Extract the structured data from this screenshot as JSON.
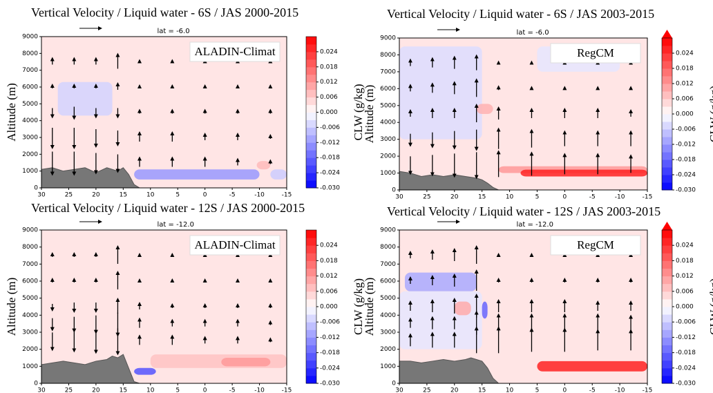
{
  "chart_data": [
    {
      "type": "section",
      "title": "Vertical Velocity / Liquid water - 6S / JAS 2000-2015",
      "annotation": "lat = -6.0",
      "label": "ALADIN-Climat",
      "y_label": "Altitude (m)",
      "colorbar_label": "CLW (g/kg)",
      "xlim": [
        30,
        -15
      ],
      "xticks": [
        30,
        25,
        20,
        15,
        10,
        5,
        0,
        -5,
        -10,
        -15
      ],
      "ylim": [
        0,
        9000
      ],
      "yticks": [
        0,
        1000,
        2000,
        3000,
        4000,
        5000,
        6000,
        7000,
        8000,
        9000
      ],
      "clim": [
        -0.03,
        0.03
      ],
      "cticks": [
        {
          "value": -0.03,
          "label": "-0.030"
        },
        -0.024,
        -0.018,
        -0.012,
        -0.006,
        {
          "value": 0,
          "label": "0.000"
        },
        0.006,
        0.012,
        0.018,
        0.024
      ],
      "extend": "neither",
      "background": 0.003,
      "clw": [
        {
          "x": [
            27,
            17
          ],
          "z": [
            4300,
            6300
          ],
          "value": -0.005
        },
        {
          "x": [
            13,
            -10
          ],
          "z": [
            500,
            1100
          ],
          "value": -0.012
        },
        {
          "x": [
            -9.5,
            -12
          ],
          "z": [
            1100,
            1600
          ],
          "value": 0.008
        },
        {
          "x": [
            -12,
            -15
          ],
          "z": [
            500,
            1100
          ],
          "value": -0.006
        }
      ],
      "terrain": {
        "x": [
          30,
          28,
          26,
          24,
          22,
          20,
          18,
          16,
          15,
          14,
          13,
          12
        ],
        "z": [
          1100,
          1200,
          1000,
          1100,
          1200,
          900,
          1200,
          1000,
          1200,
          800,
          200,
          0
        ]
      },
      "wind": {
        "x": [
          28,
          24,
          20,
          16,
          12,
          6,
          0,
          -6,
          -12
        ],
        "z": [
          1500,
          3000,
          4500,
          6000,
          7500
        ],
        "w": [
          [
            -0.8,
            -0.8,
            -0.7,
            -0.6,
            0.3,
            0.3,
            0.3,
            0.2,
            0.1
          ],
          [
            -0.7,
            -0.7,
            -0.6,
            -0.5,
            0.3,
            0.3,
            0.2,
            0.2,
            0.1
          ],
          [
            -0.3,
            -0.4,
            -0.3,
            -0.3,
            0.1,
            0.1,
            0.1,
            0.1,
            0.1
          ],
          [
            0.1,
            0.1,
            0.1,
            0.2,
            0.05,
            0.05,
            0.05,
            0.05,
            0.05
          ],
          [
            0.2,
            0.2,
            0.2,
            0.5,
            0.05,
            0.05,
            0.05,
            0.05,
            0.05
          ]
        ]
      }
    },
    {
      "type": "section",
      "title": "Vertical Velocity / Liquid water - 6S / JAS 2003-2015",
      "annotation": "lat = -6.0",
      "label": "RegCM",
      "y_label": "Altitude (m)",
      "colorbar_label": "CLW (g/kg)",
      "xlim": [
        30,
        -15
      ],
      "xticks": [
        30,
        25,
        20,
        15,
        10,
        5,
        0,
        -5,
        -10,
        -15
      ],
      "ylim": [
        0,
        9000
      ],
      "yticks": [
        0,
        1000,
        2000,
        3000,
        4000,
        5000,
        6000,
        7000,
        8000,
        9000
      ],
      "clim": [
        -0.03,
        0.03
      ],
      "cticks": [
        {
          "value": -0.03,
          "label": "-0.030"
        },
        -0.024,
        -0.018,
        -0.012,
        -0.006,
        {
          "value": 0,
          "label": "0.000"
        },
        0.006,
        0.012,
        0.018,
        0.024
      ],
      "extend": "max",
      "background": 0.003,
      "clw": [
        {
          "x": [
            30,
            15
          ],
          "z": [
            3000,
            8500
          ],
          "value": -0.004
        },
        {
          "x": [
            5,
            -10
          ],
          "z": [
            7000,
            8500
          ],
          "value": -0.003
        },
        {
          "x": [
            16,
            13
          ],
          "z": [
            4500,
            5100
          ],
          "value": 0.009
        },
        {
          "x": [
            12,
            -15
          ],
          "z": [
            1000,
            1400
          ],
          "value": 0.012
        },
        {
          "x": [
            8,
            -15
          ],
          "z": [
            800,
            1200
          ],
          "value": 0.026
        }
      ],
      "terrain": {
        "x": [
          30,
          28,
          26,
          24,
          22,
          20,
          18,
          16,
          15,
          14,
          13,
          12
        ],
        "z": [
          1100,
          1000,
          800,
          900,
          800,
          900,
          800,
          700,
          600,
          400,
          150,
          0
        ]
      },
      "wind": {
        "x": [
          28,
          24,
          20,
          16,
          12,
          6,
          0,
          -6,
          -12
        ],
        "z": [
          1500,
          3000,
          4500,
          6000,
          7500
        ],
        "w": [
          [
            -0.6,
            -0.7,
            -0.8,
            -0.9,
            0.9,
            0.8,
            0.7,
            0.7,
            0.6
          ],
          [
            -0.4,
            -0.5,
            -0.6,
            -0.7,
            0.7,
            0.6,
            0.5,
            0.5,
            0.5
          ],
          [
            0.2,
            0.3,
            0.3,
            0.6,
            0.4,
            0.3,
            0.3,
            0.3,
            0.2
          ],
          [
            0.2,
            0.3,
            0.4,
            0.6,
            0.1,
            0.05,
            0.05,
            0.05,
            0.05
          ],
          [
            0.2,
            0.3,
            0.4,
            0.5,
            0.05,
            0.05,
            0.05,
            0.05,
            0.05
          ]
        ]
      }
    },
    {
      "type": "section",
      "title": "Vertical Velocity / Liquid water - 12S / JAS 2000-2015",
      "annotation": "lat = -12.0",
      "label": "ALADIN-Climat",
      "y_label": "Altitude (m)",
      "colorbar_label": "CLW (g/kg)",
      "xlim": [
        30,
        -15
      ],
      "xticks": [
        30,
        25,
        20,
        15,
        10,
        5,
        0,
        -5,
        -10,
        -15
      ],
      "ylim": [
        0,
        9000
      ],
      "yticks": [
        0,
        1000,
        2000,
        3000,
        4000,
        5000,
        6000,
        7000,
        8000,
        9000
      ],
      "clim": [
        -0.03,
        0.03
      ],
      "cticks": [
        {
          "value": -0.03,
          "label": "-0.030"
        },
        -0.024,
        -0.018,
        -0.012,
        -0.006,
        {
          "value": 0,
          "label": "0.000"
        },
        0.006,
        0.012,
        0.018,
        0.024
      ],
      "extend": "neither",
      "background": 0.003,
      "clw": [
        {
          "x": [
            10,
            -15
          ],
          "z": [
            900,
            1700
          ],
          "value": 0.007
        },
        {
          "x": [
            -3,
            -12
          ],
          "z": [
            1000,
            1500
          ],
          "value": 0.012
        },
        {
          "x": [
            13,
            9
          ],
          "z": [
            500,
            900
          ],
          "value": -0.02
        }
      ],
      "terrain": {
        "x": [
          30,
          28,
          26,
          24,
          22,
          20,
          18,
          17,
          16,
          15,
          14,
          13,
          12
        ],
        "z": [
          1100,
          1200,
          1300,
          1200,
          1100,
          1300,
          1400,
          1600,
          1500,
          1700,
          900,
          100,
          0
        ]
      },
      "wind": {
        "x": [
          28,
          24,
          20,
          16,
          12,
          6,
          0,
          -6,
          -12
        ],
        "z": [
          2500,
          3500,
          4500,
          6000,
          7500
        ],
        "w": [
          [
            -0.6,
            -0.7,
            -0.8,
            -0.9,
            0.3,
            0.3,
            0.2,
            0.2,
            0.1
          ],
          [
            -0.4,
            -0.5,
            -0.6,
            -0.8,
            0.3,
            0.2,
            0.2,
            0.2,
            0.1
          ],
          [
            -0.2,
            -0.3,
            -0.3,
            0.5,
            0.2,
            0.1,
            0.1,
            0.1,
            0.1
          ],
          [
            0.1,
            0.1,
            0.1,
            0.6,
            0.05,
            0.05,
            0.05,
            0.05,
            0.05
          ],
          [
            0.1,
            0.1,
            0.1,
            0.6,
            0.05,
            0.05,
            0.05,
            0.05,
            0.05
          ]
        ]
      }
    },
    {
      "type": "section",
      "title": "Vertical Velocity / Liquid water - 12S / JAS 2003-2015",
      "annotation": "lat = -12.0",
      "label": "RegCM",
      "y_label": "Altitude (m)",
      "colorbar_label": "CLW (g/kg)",
      "xlim": [
        30,
        -15
      ],
      "xticks": [
        30,
        25,
        20,
        15,
        10,
        5,
        0,
        -5,
        -10,
        -15
      ],
      "ylim": [
        0,
        9000
      ],
      "yticks": [
        0,
        1000,
        2000,
        3000,
        4000,
        5000,
        6000,
        7000,
        8000,
        9000
      ],
      "clim": [
        -0.03,
        0.03
      ],
      "cticks": [
        {
          "value": -0.03,
          "label": "-0.030"
        },
        -0.024,
        -0.018,
        -0.012,
        -0.006,
        {
          "value": 0,
          "label": "0.000"
        },
        0.006,
        0.012,
        0.018,
        0.024
      ],
      "extend": "max",
      "background": 0.003,
      "clw": [
        {
          "x": [
            29,
            16
          ],
          "z": [
            5400,
            6500
          ],
          "value": -0.01
        },
        {
          "x": [
            30,
            15
          ],
          "z": [
            2000,
            5400
          ],
          "value": -0.003
        },
        {
          "x": [
            20,
            17
          ],
          "z": [
            4000,
            4800
          ],
          "value": 0.01
        },
        {
          "x": [
            15,
            14
          ],
          "z": [
            3800,
            4800
          ],
          "value": -0.018
        },
        {
          "x": [
            5,
            -15
          ],
          "z": [
            700,
            1300
          ],
          "value": 0.026
        }
      ],
      "terrain": {
        "x": [
          30,
          28,
          26,
          24,
          22,
          20,
          18,
          17,
          16,
          15,
          14,
          13,
          12
        ],
        "z": [
          1300,
          1300,
          1200,
          1300,
          1400,
          1300,
          1400,
          1500,
          1400,
          1300,
          900,
          300,
          0
        ]
      },
      "wind": {
        "x": [
          28,
          24,
          20,
          16,
          12,
          6,
          0,
          -6,
          -12
        ],
        "z": [
          2500,
          3500,
          4500,
          6000,
          7500
        ],
        "w": [
          [
            0.4,
            0.5,
            0.5,
            0.9,
            0.9,
            0.8,
            0.8,
            0.7,
            0.7
          ],
          [
            0.3,
            0.4,
            0.4,
            0.8,
            0.6,
            0.6,
            0.6,
            0.6,
            0.5
          ],
          [
            0.3,
            0.4,
            0.5,
            0.8,
            0.4,
            0.4,
            0.4,
            0.3,
            0.3
          ],
          [
            0.2,
            0.3,
            0.4,
            0.7,
            0.1,
            0.1,
            0.1,
            0.1,
            0.1
          ],
          [
            0.2,
            0.3,
            0.4,
            0.6,
            0.05,
            0.05,
            0.05,
            0.05,
            0.05
          ]
        ]
      }
    }
  ]
}
